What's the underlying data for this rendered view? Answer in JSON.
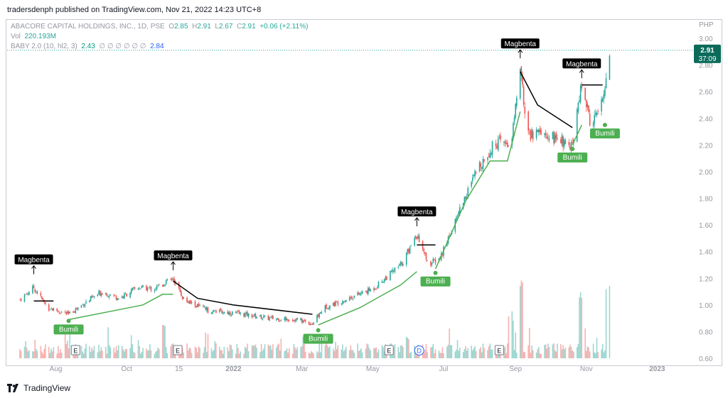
{
  "header": {
    "text": "tradersdenph published on TradingView.com, Nov 21, 2022 14:23 UTC+8"
  },
  "legend": {
    "symbol": "ABACORE CAPITAL HOLDINGS, INC., 1D, PSE",
    "o_label": "O",
    "o": "2.85",
    "h_label": "H",
    "h": "2.91",
    "l_label": "L",
    "l": "2.67",
    "c_label": "C",
    "c": "2.91",
    "change": "+0.06 (+2.11%)",
    "vol_label": "Vol",
    "vol": "220.193M",
    "ind_label": "BABY 2.0 (10, hl2, 3)",
    "ind_v1": "2.43",
    "ind_zeros": "∅ ∅ ∅ ∅ ∅ ∅",
    "ind_v2": "2.84"
  },
  "price_tag": {
    "price": "2.91",
    "countdown": "37:09"
  },
  "footer": {
    "brand": "TradingView"
  },
  "colors": {
    "up": "#26a69a",
    "down": "#ef5350",
    "bull_line": "#4caf50",
    "bear_line": "#000000",
    "tag_bg": "#0b6b5a"
  },
  "chart_data": {
    "type": "candlestick",
    "currency": "PHP",
    "y_ticks": [
      "3.00",
      "2.80",
      "2.60",
      "2.40",
      "2.20",
      "2.00",
      "1.80",
      "1.60",
      "1.40",
      "1.20",
      "1.00",
      "0.80",
      "0.60"
    ],
    "ylim": [
      0.6,
      3.0
    ],
    "x_ticks": [
      "Aug",
      "Oct",
      "15",
      "2022",
      "Mar",
      "May",
      "Jul",
      "Sep",
      "Nov",
      "2023"
    ],
    "last_close": 2.91,
    "signals": [
      {
        "label": "Magbenta",
        "date": "2021-07-13",
        "price": 1.23
      },
      {
        "label": "Bumili",
        "date": "2021-08-12",
        "price": 0.88
      },
      {
        "label": "Magbenta",
        "date": "2021-11-10",
        "price": 1.26
      },
      {
        "label": "Bumili",
        "date": "2022-03-15",
        "price": 0.81
      },
      {
        "label": "Magbenta",
        "date": "2022-06-08",
        "price": 1.59
      },
      {
        "label": "Bumili",
        "date": "2022-06-24",
        "price": 1.24
      },
      {
        "label": "Magbenta",
        "date": "2022-09-05",
        "price": 2.85
      },
      {
        "label": "Bumili",
        "date": "2022-10-20",
        "price": 2.17
      },
      {
        "label": "Magbenta",
        "date": "2022-10-28",
        "price": 2.7
      },
      {
        "label": "Bumili",
        "date": "2022-11-17",
        "price": 2.35
      }
    ],
    "event_markers": [
      {
        "label": "E",
        "date": "2021-08-18"
      },
      {
        "label": "E",
        "date": "2021-11-14"
      },
      {
        "label": "E",
        "date": "2022-05-15"
      },
      {
        "label": "D",
        "date": "2022-06-10"
      },
      {
        "label": "E",
        "date": "2022-08-18"
      }
    ],
    "trend_line": [
      {
        "date": "2021-07-13",
        "bear": 1.03
      },
      {
        "date": "2021-07-30",
        "bear": 1.03
      },
      {
        "date": "2021-08-12",
        "bull": 0.89
      },
      {
        "date": "2021-10-15",
        "bull": 1.0
      },
      {
        "date": "2021-11-01",
        "bull": 1.08
      },
      {
        "date": "2021-11-10",
        "bull": 1.08
      },
      {
        "date": "2021-11-10",
        "bear": 1.18
      },
      {
        "date": "2021-12-01",
        "bear": 1.05
      },
      {
        "date": "2022-01-01",
        "bear": 1.0
      },
      {
        "date": "2022-03-10",
        "bear": 0.93
      },
      {
        "date": "2022-03-15",
        "bull": 0.85
      },
      {
        "date": "2022-04-20",
        "bull": 0.98
      },
      {
        "date": "2022-05-25",
        "bull": 1.15
      },
      {
        "date": "2022-06-08",
        "bull": 1.25
      },
      {
        "date": "2022-06-08",
        "bear": 1.45
      },
      {
        "date": "2022-06-24",
        "bear": 1.45
      },
      {
        "date": "2022-06-24",
        "bull": 1.27
      },
      {
        "date": "2022-07-20",
        "bull": 1.78
      },
      {
        "date": "2022-08-10",
        "bull": 2.08
      },
      {
        "date": "2022-08-25",
        "bull": 2.08
      },
      {
        "date": "2022-09-05",
        "bull": 2.45
      },
      {
        "date": "2022-09-05",
        "bear": 2.75
      },
      {
        "date": "2022-09-20",
        "bear": 2.5
      },
      {
        "date": "2022-10-20",
        "bear": 2.33
      },
      {
        "date": "2022-10-20",
        "bull": 2.2
      },
      {
        "date": "2022-10-28",
        "bull": 2.35
      },
      {
        "date": "2022-10-28",
        "bear": 2.65
      },
      {
        "date": "2022-11-15",
        "bear": 2.65
      },
      {
        "date": "2022-11-17",
        "bull": 2.43
      }
    ],
    "close_path": [
      {
        "date": "2021-07-01",
        "close": 1.04
      },
      {
        "date": "2021-07-13",
        "close": 1.13
      },
      {
        "date": "2021-07-25",
        "close": 0.98
      },
      {
        "date": "2021-08-12",
        "close": 0.93
      },
      {
        "date": "2021-08-25",
        "close": 1.01
      },
      {
        "date": "2021-09-10",
        "close": 1.1
      },
      {
        "date": "2021-09-25",
        "close": 1.05
      },
      {
        "date": "2021-10-10",
        "close": 1.13
      },
      {
        "date": "2021-10-25",
        "close": 1.12
      },
      {
        "date": "2021-11-10",
        "close": 1.2
      },
      {
        "date": "2021-11-20",
        "close": 1.03
      },
      {
        "date": "2021-12-10",
        "close": 0.96
      },
      {
        "date": "2022-01-10",
        "close": 0.93
      },
      {
        "date": "2022-02-01",
        "close": 0.9
      },
      {
        "date": "2022-02-25",
        "close": 0.89
      },
      {
        "date": "2022-03-10",
        "close": 0.86
      },
      {
        "date": "2022-03-20",
        "close": 0.98
      },
      {
        "date": "2022-04-10",
        "close": 1.05
      },
      {
        "date": "2022-05-01",
        "close": 1.12
      },
      {
        "date": "2022-05-25",
        "close": 1.3
      },
      {
        "date": "2022-06-08",
        "close": 1.52
      },
      {
        "date": "2022-06-18",
        "close": 1.3
      },
      {
        "date": "2022-06-28",
        "close": 1.35
      },
      {
        "date": "2022-07-15",
        "close": 1.72
      },
      {
        "date": "2022-08-01",
        "close": 2.05
      },
      {
        "date": "2022-08-15",
        "close": 2.22
      },
      {
        "date": "2022-08-28",
        "close": 2.2
      },
      {
        "date": "2022-09-05",
        "close": 2.75
      },
      {
        "date": "2022-09-12",
        "close": 2.28
      },
      {
        "date": "2022-10-01",
        "close": 2.26
      },
      {
        "date": "2022-10-20",
        "close": 2.2
      },
      {
        "date": "2022-10-28",
        "close": 2.65
      },
      {
        "date": "2022-11-05",
        "close": 2.35
      },
      {
        "date": "2022-11-15",
        "close": 2.52
      },
      {
        "date": "2022-11-21",
        "close": 2.91
      }
    ],
    "volume_spikes": [
      {
        "date": "2021-11-01",
        "rel": 0.5
      },
      {
        "date": "2022-05-30",
        "rel": 0.3
      },
      {
        "date": "2022-08-28",
        "rel": 0.55
      },
      {
        "date": "2022-09-05",
        "rel": 1.0
      },
      {
        "date": "2022-10-28",
        "rel": 0.75
      },
      {
        "date": "2022-11-20",
        "rel": 1.0
      }
    ]
  }
}
